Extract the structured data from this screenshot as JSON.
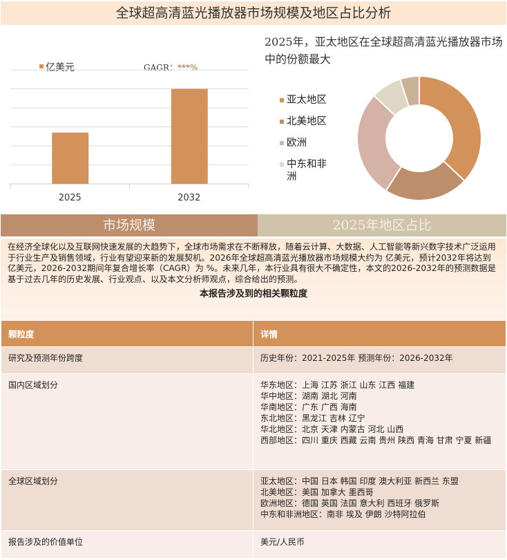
{
  "title": "全球超高清蓝光播放器市场规模及地区占比分析",
  "chart_data": [
    {
      "type": "bar",
      "categories": [
        "2025",
        "2032"
      ],
      "values": [
        2.7,
        5.0
      ],
      "legend": "亿美元",
      "annotation": "GAGR：",
      "annotation_value": "***%",
      "ylim": [
        0,
        6
      ],
      "grid": true,
      "color": "#d39259"
    },
    {
      "type": "pie",
      "donut": true,
      "title": "2025年，亚太地区在全球超高清蓝光播放器市场中的份额最大",
      "labels": [
        "亚太地区",
        "北美地区",
        "欧洲",
        "中东和非洲",
        ""
      ],
      "values": [
        37,
        22,
        28,
        8,
        5
      ],
      "colors": [
        "#d39259",
        "#bd8e6c",
        "#d4b3a6",
        "#dfd6c6",
        "#c9b398"
      ],
      "legend": "left"
    }
  ],
  "bands": {
    "left": "市场规模",
    "right": "2025年地区占比"
  },
  "paragraph": "在经济全球化以及互联网快速发展的大趋势下，全球市场需求在不断释放，随着云计算、大数据、人工智能等新兴数字技术广泛运用于行业生产及销售领域，行业有望迎来新的发展契机。2026年全球超高清蓝光播放器市场规模大约为 亿美元，预计2032年将达到 亿美元，2026-2032期间年复合增长率（CAGR）为 %。未来几年，本行业具有很大不确定性，本文的2026-2032年的预测数据是基于过去几年的历史发展、行业观点、以及本文分析师观点，综合给出的预测。",
  "table": {
    "title": "本报告涉及到的相关颗粒度",
    "headers": [
      "颗粒度",
      "详情"
    ],
    "rows": [
      {
        "k": "研究及预测年份跨度",
        "v": "历史年份：2021-2025年 预测年份：2026-2032年"
      },
      {
        "k": "国内区域划分",
        "v": "华东地区：上海  江苏  浙江  山东  江西  福建\n华中地区：湖南  湖北  河南\n华南地区：广东  广西  海南\n东北地区：黑龙江  吉林  辽宁\n华北地区：北京  天津  内蒙古  河北  山西\n西部地区：四川  重庆  西藏  云南  贵州  陕西  青海  甘肃  宁夏  新疆"
      },
      {
        "k": "全球区域划分",
        "v": "亚太地区：中国  日本  韩国  印度  澳大利亚  新西兰  东盟\n北美地区：美国  加拿大  墨西哥\n欧洲地区：德国  英国  法国  意大利  西班牙  俄罗斯\n中东和非洲地区：南非  埃及  伊朗  沙特阿拉伯"
      },
      {
        "k": "报告涉及的价值单位",
        "v": "美元/人民币"
      }
    ]
  }
}
